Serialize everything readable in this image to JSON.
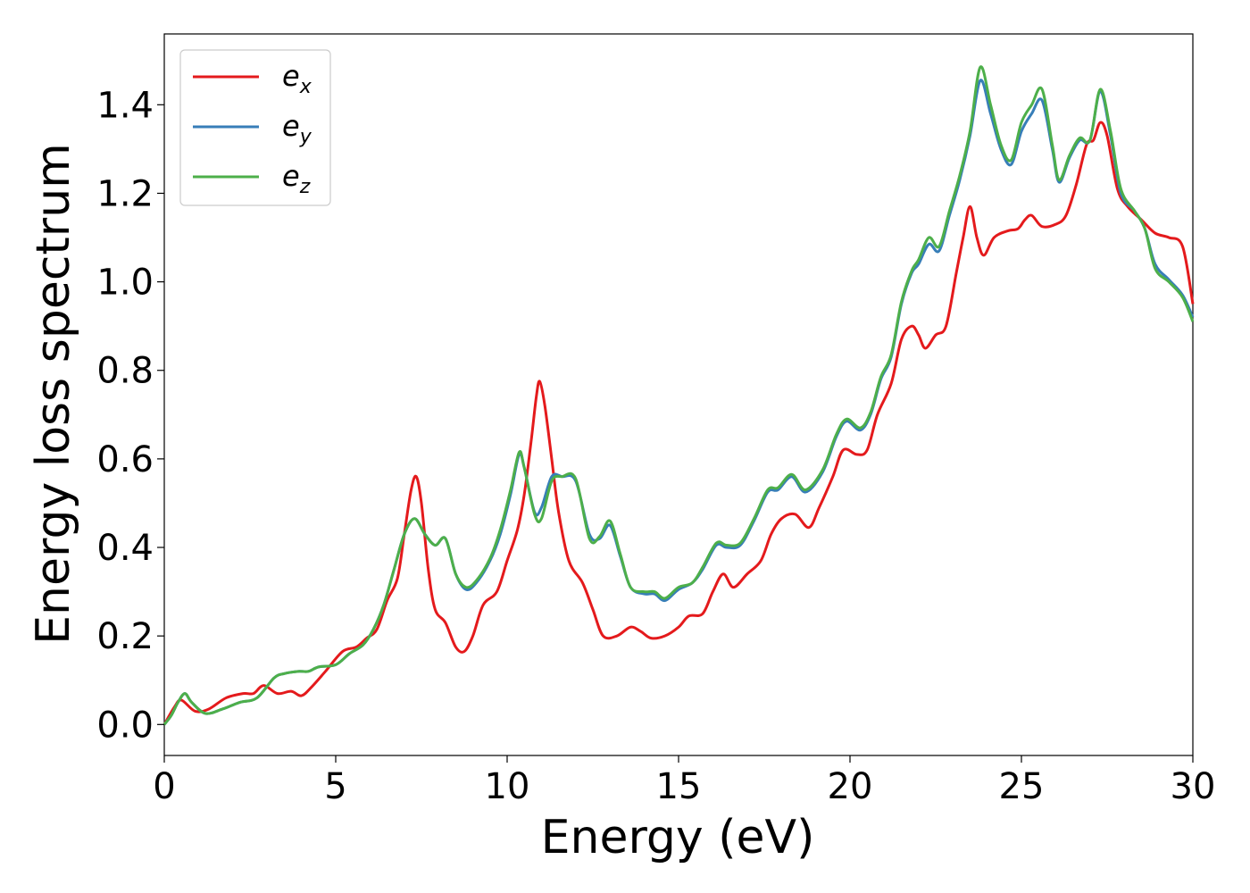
{
  "chart_data": {
    "type": "line",
    "xlabel": "Energy (eV)",
    "ylabel": "Energy loss spectrum",
    "xlim": [
      0,
      30
    ],
    "ylim": [
      -0.07,
      1.56
    ],
    "xticks": [
      0,
      5,
      10,
      15,
      20,
      25,
      30
    ],
    "yticks": [
      0.0,
      0.2,
      0.4,
      0.6,
      0.8,
      1.0,
      1.2,
      1.4
    ],
    "xtick_labels": [
      "0",
      "5",
      "10",
      "15",
      "20",
      "25",
      "30"
    ],
    "ytick_labels": [
      "0.0",
      "0.2",
      "0.4",
      "0.6",
      "0.8",
      "1.0",
      "1.2",
      "1.4"
    ],
    "grid": false,
    "legend_position": "top-left",
    "series": [
      {
        "name": "e_x",
        "label_base": "e",
        "label_sub": "x",
        "color": "#e41a1c",
        "points": [
          [
            0,
            0.0
          ],
          [
            0.3,
            0.04
          ],
          [
            0.5,
            0.055
          ],
          [
            0.9,
            0.03
          ],
          [
            1.3,
            0.035
          ],
          [
            1.8,
            0.06
          ],
          [
            2.3,
            0.07
          ],
          [
            2.6,
            0.07
          ],
          [
            2.9,
            0.088
          ],
          [
            3.3,
            0.07
          ],
          [
            3.7,
            0.075
          ],
          [
            4.0,
            0.065
          ],
          [
            4.3,
            0.085
          ],
          [
            4.7,
            0.12
          ],
          [
            5.2,
            0.165
          ],
          [
            5.6,
            0.175
          ],
          [
            5.9,
            0.195
          ],
          [
            6.2,
            0.215
          ],
          [
            6.5,
            0.28
          ],
          [
            6.8,
            0.33
          ],
          [
            7.0,
            0.43
          ],
          [
            7.2,
            0.53
          ],
          [
            7.35,
            0.56
          ],
          [
            7.5,
            0.5
          ],
          [
            7.7,
            0.35
          ],
          [
            7.9,
            0.26
          ],
          [
            8.2,
            0.23
          ],
          [
            8.5,
            0.175
          ],
          [
            8.75,
            0.165
          ],
          [
            9.0,
            0.2
          ],
          [
            9.3,
            0.27
          ],
          [
            9.7,
            0.3
          ],
          [
            10.0,
            0.37
          ],
          [
            10.3,
            0.44
          ],
          [
            10.5,
            0.52
          ],
          [
            10.7,
            0.64
          ],
          [
            10.85,
            0.74
          ],
          [
            10.95,
            0.775
          ],
          [
            11.1,
            0.72
          ],
          [
            11.3,
            0.6
          ],
          [
            11.5,
            0.48
          ],
          [
            11.8,
            0.37
          ],
          [
            12.2,
            0.32
          ],
          [
            12.5,
            0.26
          ],
          [
            12.8,
            0.2
          ],
          [
            13.2,
            0.2
          ],
          [
            13.6,
            0.22
          ],
          [
            13.9,
            0.21
          ],
          [
            14.2,
            0.195
          ],
          [
            14.6,
            0.2
          ],
          [
            15.0,
            0.22
          ],
          [
            15.3,
            0.245
          ],
          [
            15.7,
            0.25
          ],
          [
            16.0,
            0.3
          ],
          [
            16.3,
            0.34
          ],
          [
            16.6,
            0.31
          ],
          [
            17.0,
            0.34
          ],
          [
            17.4,
            0.37
          ],
          [
            17.7,
            0.43
          ],
          [
            18.0,
            0.465
          ],
          [
            18.4,
            0.475
          ],
          [
            18.8,
            0.445
          ],
          [
            19.1,
            0.49
          ],
          [
            19.5,
            0.56
          ],
          [
            19.8,
            0.62
          ],
          [
            20.2,
            0.61
          ],
          [
            20.5,
            0.62
          ],
          [
            20.8,
            0.7
          ],
          [
            21.2,
            0.77
          ],
          [
            21.5,
            0.87
          ],
          [
            21.8,
            0.9
          ],
          [
            22.0,
            0.88
          ],
          [
            22.2,
            0.85
          ],
          [
            22.5,
            0.88
          ],
          [
            22.8,
            0.9
          ],
          [
            23.1,
            1.02
          ],
          [
            23.3,
            1.1
          ],
          [
            23.5,
            1.17
          ],
          [
            23.7,
            1.1
          ],
          [
            23.9,
            1.06
          ],
          [
            24.2,
            1.1
          ],
          [
            24.6,
            1.115
          ],
          [
            24.9,
            1.12
          ],
          [
            25.1,
            1.14
          ],
          [
            25.3,
            1.15
          ],
          [
            25.6,
            1.125
          ],
          [
            26.0,
            1.13
          ],
          [
            26.3,
            1.15
          ],
          [
            26.6,
            1.22
          ],
          [
            26.9,
            1.31
          ],
          [
            27.1,
            1.32
          ],
          [
            27.3,
            1.36
          ],
          [
            27.5,
            1.33
          ],
          [
            27.8,
            1.21
          ],
          [
            28.1,
            1.17
          ],
          [
            28.5,
            1.14
          ],
          [
            28.9,
            1.11
          ],
          [
            29.3,
            1.1
          ],
          [
            29.7,
            1.08
          ],
          [
            30.0,
            0.95
          ]
        ]
      },
      {
        "name": "e_y",
        "label_base": "e",
        "label_sub": "y",
        "color": "#377eb8",
        "points": [
          [
            0,
            0.0
          ],
          [
            0.2,
            0.02
          ],
          [
            0.4,
            0.05
          ],
          [
            0.6,
            0.07
          ],
          [
            0.8,
            0.05
          ],
          [
            1.2,
            0.025
          ],
          [
            1.7,
            0.035
          ],
          [
            2.2,
            0.05
          ],
          [
            2.7,
            0.06
          ],
          [
            3.2,
            0.105
          ],
          [
            3.5,
            0.115
          ],
          [
            3.9,
            0.12
          ],
          [
            4.2,
            0.12
          ],
          [
            4.5,
            0.13
          ],
          [
            5.0,
            0.135
          ],
          [
            5.4,
            0.16
          ],
          [
            5.8,
            0.18
          ],
          [
            6.1,
            0.215
          ],
          [
            6.4,
            0.27
          ],
          [
            6.7,
            0.35
          ],
          [
            7.0,
            0.43
          ],
          [
            7.3,
            0.465
          ],
          [
            7.6,
            0.43
          ],
          [
            7.9,
            0.405
          ],
          [
            8.2,
            0.42
          ],
          [
            8.5,
            0.34
          ],
          [
            8.8,
            0.305
          ],
          [
            9.1,
            0.32
          ],
          [
            9.5,
            0.37
          ],
          [
            9.8,
            0.43
          ],
          [
            10.1,
            0.52
          ],
          [
            10.35,
            0.61
          ],
          [
            10.5,
            0.58
          ],
          [
            10.8,
            0.48
          ],
          [
            11.0,
            0.49
          ],
          [
            11.3,
            0.56
          ],
          [
            11.6,
            0.56
          ],
          [
            12.0,
            0.55
          ],
          [
            12.4,
            0.43
          ],
          [
            12.7,
            0.42
          ],
          [
            13.0,
            0.45
          ],
          [
            13.3,
            0.38
          ],
          [
            13.6,
            0.31
          ],
          [
            14.0,
            0.295
          ],
          [
            14.3,
            0.295
          ],
          [
            14.6,
            0.28
          ],
          [
            15.0,
            0.305
          ],
          [
            15.4,
            0.32
          ],
          [
            15.7,
            0.35
          ],
          [
            16.1,
            0.405
          ],
          [
            16.4,
            0.4
          ],
          [
            16.8,
            0.405
          ],
          [
            17.2,
            0.46
          ],
          [
            17.6,
            0.525
          ],
          [
            17.9,
            0.53
          ],
          [
            18.3,
            0.56
          ],
          [
            18.7,
            0.525
          ],
          [
            19.2,
            0.57
          ],
          [
            19.6,
            0.65
          ],
          [
            19.9,
            0.685
          ],
          [
            20.3,
            0.665
          ],
          [
            20.6,
            0.7
          ],
          [
            20.9,
            0.78
          ],
          [
            21.2,
            0.83
          ],
          [
            21.5,
            0.95
          ],
          [
            21.8,
            1.02
          ],
          [
            22.0,
            1.04
          ],
          [
            22.3,
            1.085
          ],
          [
            22.6,
            1.07
          ],
          [
            22.9,
            1.15
          ],
          [
            23.2,
            1.23
          ],
          [
            23.5,
            1.33
          ],
          [
            23.8,
            1.455
          ],
          [
            24.1,
            1.38
          ],
          [
            24.4,
            1.3
          ],
          [
            24.7,
            1.265
          ],
          [
            25.0,
            1.34
          ],
          [
            25.3,
            1.38
          ],
          [
            25.6,
            1.41
          ],
          [
            25.9,
            1.3
          ],
          [
            26.1,
            1.225
          ],
          [
            26.4,
            1.28
          ],
          [
            26.7,
            1.32
          ],
          [
            27.0,
            1.32
          ],
          [
            27.3,
            1.43
          ],
          [
            27.6,
            1.33
          ],
          [
            27.9,
            1.2
          ],
          [
            28.3,
            1.16
          ],
          [
            28.6,
            1.12
          ],
          [
            28.9,
            1.04
          ],
          [
            29.3,
            1.005
          ],
          [
            29.7,
            0.97
          ],
          [
            30.0,
            0.92
          ]
        ]
      },
      {
        "name": "e_z",
        "label_base": "e",
        "label_sub": "z",
        "color": "#4daf4a",
        "points": [
          [
            0,
            0.0
          ],
          [
            0.2,
            0.02
          ],
          [
            0.4,
            0.05
          ],
          [
            0.6,
            0.07
          ],
          [
            0.8,
            0.05
          ],
          [
            1.2,
            0.025
          ],
          [
            1.7,
            0.035
          ],
          [
            2.2,
            0.05
          ],
          [
            2.7,
            0.06
          ],
          [
            3.2,
            0.105
          ],
          [
            3.5,
            0.115
          ],
          [
            3.9,
            0.12
          ],
          [
            4.2,
            0.12
          ],
          [
            4.5,
            0.13
          ],
          [
            5.0,
            0.135
          ],
          [
            5.4,
            0.16
          ],
          [
            5.8,
            0.18
          ],
          [
            6.1,
            0.215
          ],
          [
            6.4,
            0.27
          ],
          [
            6.7,
            0.35
          ],
          [
            7.0,
            0.43
          ],
          [
            7.3,
            0.465
          ],
          [
            7.6,
            0.43
          ],
          [
            7.9,
            0.405
          ],
          [
            8.2,
            0.42
          ],
          [
            8.5,
            0.34
          ],
          [
            8.8,
            0.31
          ],
          [
            9.1,
            0.325
          ],
          [
            9.5,
            0.375
          ],
          [
            9.8,
            0.44
          ],
          [
            10.1,
            0.53
          ],
          [
            10.35,
            0.615
          ],
          [
            10.5,
            0.58
          ],
          [
            10.8,
            0.475
          ],
          [
            11.0,
            0.465
          ],
          [
            11.3,
            0.55
          ],
          [
            11.6,
            0.56
          ],
          [
            12.0,
            0.555
          ],
          [
            12.4,
            0.42
          ],
          [
            12.7,
            0.425
          ],
          [
            13.0,
            0.46
          ],
          [
            13.3,
            0.385
          ],
          [
            13.6,
            0.31
          ],
          [
            14.0,
            0.3
          ],
          [
            14.3,
            0.3
          ],
          [
            14.6,
            0.285
          ],
          [
            15.0,
            0.31
          ],
          [
            15.4,
            0.32
          ],
          [
            15.7,
            0.355
          ],
          [
            16.1,
            0.41
          ],
          [
            16.4,
            0.405
          ],
          [
            16.8,
            0.41
          ],
          [
            17.2,
            0.465
          ],
          [
            17.6,
            0.53
          ],
          [
            17.9,
            0.535
          ],
          [
            18.3,
            0.565
          ],
          [
            18.7,
            0.53
          ],
          [
            19.2,
            0.575
          ],
          [
            19.6,
            0.655
          ],
          [
            19.9,
            0.69
          ],
          [
            20.3,
            0.67
          ],
          [
            20.6,
            0.705
          ],
          [
            20.9,
            0.785
          ],
          [
            21.2,
            0.835
          ],
          [
            21.5,
            0.955
          ],
          [
            21.8,
            1.025
          ],
          [
            22.0,
            1.05
          ],
          [
            22.3,
            1.1
          ],
          [
            22.6,
            1.08
          ],
          [
            22.9,
            1.16
          ],
          [
            23.2,
            1.24
          ],
          [
            23.5,
            1.34
          ],
          [
            23.8,
            1.485
          ],
          [
            24.1,
            1.4
          ],
          [
            24.4,
            1.31
          ],
          [
            24.7,
            1.275
          ],
          [
            25.0,
            1.36
          ],
          [
            25.3,
            1.4
          ],
          [
            25.6,
            1.435
          ],
          [
            25.9,
            1.31
          ],
          [
            26.1,
            1.23
          ],
          [
            26.4,
            1.285
          ],
          [
            26.7,
            1.325
          ],
          [
            27.0,
            1.32
          ],
          [
            27.3,
            1.435
          ],
          [
            27.6,
            1.34
          ],
          [
            27.9,
            1.21
          ],
          [
            28.3,
            1.16
          ],
          [
            28.6,
            1.12
          ],
          [
            28.9,
            1.03
          ],
          [
            29.3,
            1.0
          ],
          [
            29.7,
            0.965
          ],
          [
            30.0,
            0.91
          ]
        ]
      }
    ]
  }
}
